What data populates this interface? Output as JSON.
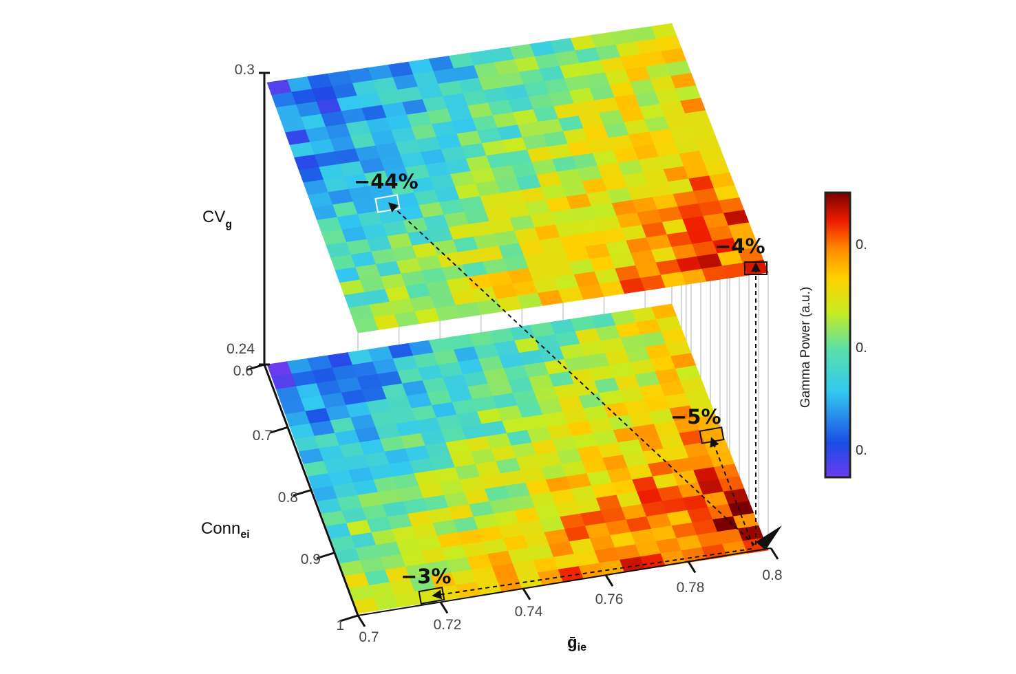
{
  "chart_data": {
    "type": "heatmap",
    "title": "",
    "x_axis": {
      "label_main": "ḡ",
      "label_sub": "ie",
      "ticks": [
        "0.7",
        "0.72",
        "0.74",
        "0.76",
        "0.78",
        "0.8"
      ],
      "range": [
        0.7,
        0.8
      ]
    },
    "y_axis": {
      "label_main": "Conn",
      "label_sub": "ei",
      "ticks": [
        "0.6",
        "0.7",
        "0.8",
        "0.9",
        "1"
      ],
      "range": [
        0.6,
        1.0
      ]
    },
    "z_axis": {
      "label_main": "CV",
      "label_sub": "g",
      "ticks": [
        "0.3",
        "0.24"
      ],
      "range": [
        0.24,
        0.3
      ]
    },
    "colorbar": {
      "label": "Gamma Power (a.u.)",
      "ticks": [
        "0.",
        "0.",
        "0."
      ],
      "colormap": "jet"
    },
    "grid_size": [
      20,
      20
    ],
    "layers": [
      {
        "level": "CV_g = 0.3",
        "corners_norm_power": {
          "top_left": 0.08,
          "top_right": 0.62,
          "bottom_left": 0.5,
          "bottom_right": 0.9
        }
      },
      {
        "level": "CV_g = 0.24",
        "corners_norm_power": {
          "top_left": 0.08,
          "top_right": 0.62,
          "bottom_left": 0.6,
          "bottom_right": 0.96
        }
      }
    ],
    "annotations": [
      {
        "text": "−44%",
        "layer": "CV_g = 0.3",
        "x": 0.705,
        "y": 0.72
      },
      {
        "text": "−4%",
        "layer": "CV_g = 0.3",
        "x": 0.8,
        "y": 1.0
      },
      {
        "text": "−5%",
        "layer": "CV_g = 0.24",
        "x": 0.8,
        "y": 0.83
      },
      {
        "text": "−3%",
        "layer": "CV_g = 0.24",
        "x": 0.716,
        "y": 1.0
      }
    ]
  }
}
